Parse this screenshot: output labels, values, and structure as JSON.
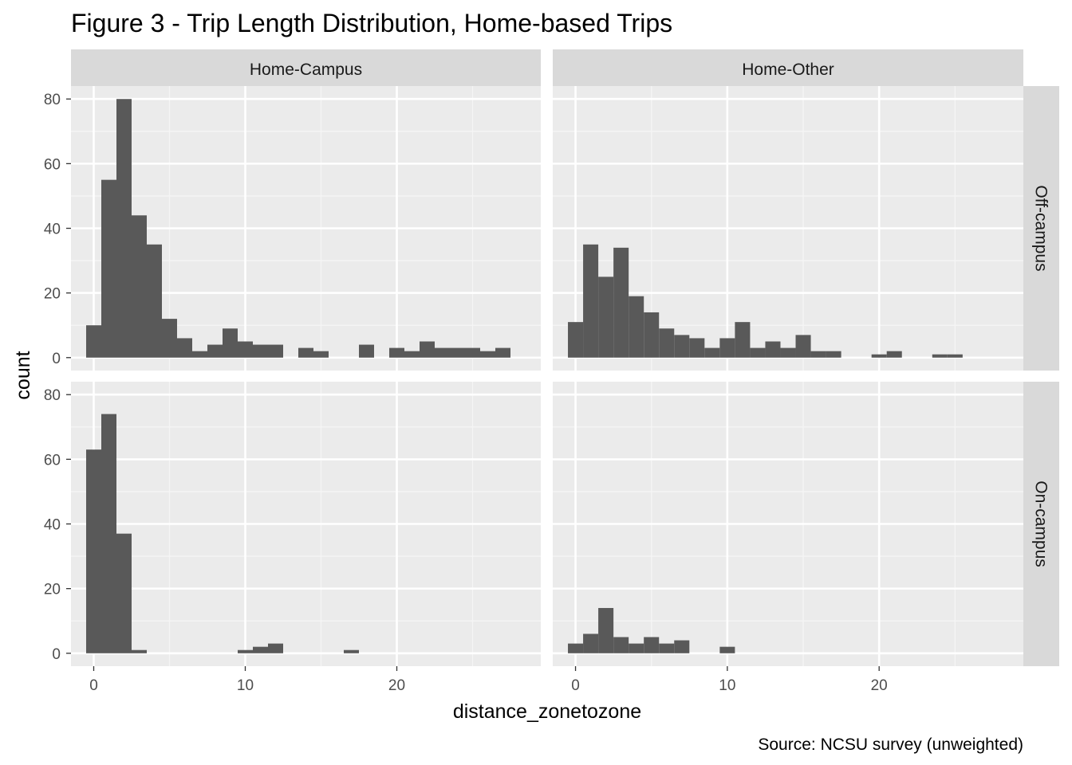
{
  "chart_data": {
    "type": "bar",
    "chart_kind": "faceted histogram",
    "title": "Figure 3 - Trip Length Distribution, Home-based Trips",
    "xlabel": "distance_zonetozone",
    "ylabel": "count",
    "caption": "Source: NCSU survey (unweighted)",
    "xlim": [
      -1.5,
      29.5
    ],
    "ylim": [
      -4,
      84
    ],
    "x_ticks": [
      0,
      10,
      20
    ],
    "x_tick_labels": [
      "0",
      "10",
      "20"
    ],
    "y_ticks": [
      0,
      20,
      40,
      60,
      80
    ],
    "y_tick_labels": [
      "0",
      "20",
      "40",
      "60",
      "80"
    ],
    "bin_width": 1,
    "grid": true,
    "bar_color": "#595959",
    "panel_background": "#ebebeb",
    "strip_background": "#d9d9d9",
    "col_labels": [
      "Home-Campus",
      "Home-Other"
    ],
    "row_labels": [
      "Off-campus",
      "On-campus"
    ],
    "facets": [
      {
        "col": "Home-Campus",
        "row": "Off-campus",
        "bins": [
          {
            "x": 0,
            "count": 10
          },
          {
            "x": 1,
            "count": 55
          },
          {
            "x": 2,
            "count": 80
          },
          {
            "x": 3,
            "count": 44
          },
          {
            "x": 4,
            "count": 35
          },
          {
            "x": 5,
            "count": 12
          },
          {
            "x": 6,
            "count": 6
          },
          {
            "x": 7,
            "count": 2
          },
          {
            "x": 8,
            "count": 4
          },
          {
            "x": 9,
            "count": 9
          },
          {
            "x": 10,
            "count": 5
          },
          {
            "x": 11,
            "count": 4
          },
          {
            "x": 12,
            "count": 4
          },
          {
            "x": 14,
            "count": 3
          },
          {
            "x": 15,
            "count": 2
          },
          {
            "x": 18,
            "count": 4
          },
          {
            "x": 20,
            "count": 3
          },
          {
            "x": 21,
            "count": 2
          },
          {
            "x": 22,
            "count": 5
          },
          {
            "x": 23,
            "count": 3
          },
          {
            "x": 24,
            "count": 3
          },
          {
            "x": 25,
            "count": 3
          },
          {
            "x": 26,
            "count": 2
          },
          {
            "x": 27,
            "count": 3
          }
        ]
      },
      {
        "col": "Home-Other",
        "row": "Off-campus",
        "bins": [
          {
            "x": 0,
            "count": 11
          },
          {
            "x": 1,
            "count": 35
          },
          {
            "x": 2,
            "count": 25
          },
          {
            "x": 3,
            "count": 34
          },
          {
            "x": 4,
            "count": 19
          },
          {
            "x": 5,
            "count": 14
          },
          {
            "x": 6,
            "count": 9
          },
          {
            "x": 7,
            "count": 7
          },
          {
            "x": 8,
            "count": 6
          },
          {
            "x": 9,
            "count": 3
          },
          {
            "x": 10,
            "count": 6
          },
          {
            "x": 11,
            "count": 11
          },
          {
            "x": 12,
            "count": 3
          },
          {
            "x": 13,
            "count": 5
          },
          {
            "x": 14,
            "count": 3
          },
          {
            "x": 15,
            "count": 7
          },
          {
            "x": 16,
            "count": 2
          },
          {
            "x": 17,
            "count": 2
          },
          {
            "x": 20,
            "count": 1
          },
          {
            "x": 21,
            "count": 2
          },
          {
            "x": 24,
            "count": 1
          },
          {
            "x": 25,
            "count": 1
          }
        ]
      },
      {
        "col": "Home-Campus",
        "row": "On-campus",
        "bins": [
          {
            "x": 0,
            "count": 63
          },
          {
            "x": 1,
            "count": 74
          },
          {
            "x": 2,
            "count": 37
          },
          {
            "x": 3,
            "count": 1
          },
          {
            "x": 10,
            "count": 1
          },
          {
            "x": 11,
            "count": 2
          },
          {
            "x": 12,
            "count": 3
          },
          {
            "x": 17,
            "count": 1
          }
        ]
      },
      {
        "col": "Home-Other",
        "row": "On-campus",
        "bins": [
          {
            "x": 0,
            "count": 3
          },
          {
            "x": 1,
            "count": 6
          },
          {
            "x": 2,
            "count": 14
          },
          {
            "x": 3,
            "count": 5
          },
          {
            "x": 4,
            "count": 3
          },
          {
            "x": 5,
            "count": 5
          },
          {
            "x": 6,
            "count": 3
          },
          {
            "x": 7,
            "count": 4
          },
          {
            "x": 10,
            "count": 2
          }
        ]
      }
    ]
  }
}
